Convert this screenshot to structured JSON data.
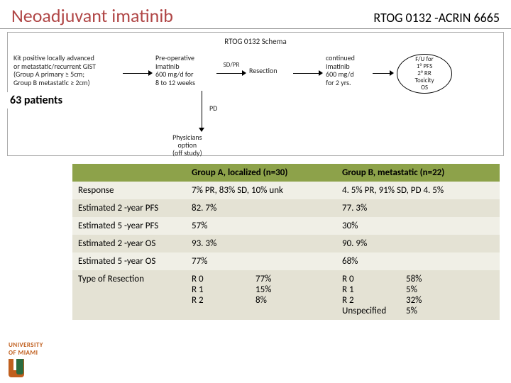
{
  "header": {
    "title_left": "Neoadjuvant imatinib",
    "title_right": "RTOG 0132 -ACRIN 6665",
    "title_left_color": "#b04646"
  },
  "schema": {
    "title": "RTOG 0132 Schema",
    "kit_box": "Kit positive locally advanced\nor metastatic/recurrent GIST\n(Group A primary ≥ 5cm;\nGroup B metastatic ≥ 2cm)",
    "preop_box": "Pre-operative\nImatinib\n600 mg/d for\n8 to 12 weeks",
    "arrow1_label": "SD/PR",
    "resection_box": "Resection",
    "continued_box": "continued\nImatinib\n600 mg/d\nfor 2 yrs.",
    "endpoints_oval": "F/U for\n1° PFS\n2° RR\nToxicity\nOS",
    "pd_label": "PD",
    "physicians_option": "Physicians\noption\n(off study)"
  },
  "patients_note": "63 patients",
  "table": {
    "header_bg": "#8da24a",
    "row_odd_bg": "#f0efe6",
    "row_even_bg": "#e4e2d4",
    "columns": [
      "",
      "Group A, localized (n=30)",
      "Group B, metastatic (n=22)"
    ],
    "rows": [
      {
        "label": "Response",
        "a": "7% PR, 83% SD, 10% unk",
        "b": "4. 5% PR, 91% SD, PD 4. 5%"
      },
      {
        "label": "Estimated 2 -year PFS",
        "a": "82. 7%",
        "b": "77. 3%"
      },
      {
        "label": "Estimated 5 -year PFS",
        "a": "57%",
        "b": "30%"
      },
      {
        "label": "Estimated 2 -year OS",
        "a": "93. 3%",
        "b": "90. 9%"
      },
      {
        "label": "Estimated 5 -year OS",
        "a": "77%",
        "b": "68%"
      }
    ],
    "resection_row": {
      "label": "Type of Resection",
      "a": {
        "labels": [
          "R 0",
          "R 1",
          "R 2"
        ],
        "pcts": [
          "77%",
          "15%",
          "8%"
        ]
      },
      "b": {
        "labels": [
          "R 0",
          "R 1",
          "R 2",
          "Unspecified"
        ],
        "pcts": [
          "58%",
          "5%",
          "32%",
          " 5%"
        ]
      }
    }
  },
  "logo": {
    "text": "UNIVERSITY\nOF MIAMI",
    "orange": "#c05f1e",
    "green": "#2a6b3f"
  }
}
